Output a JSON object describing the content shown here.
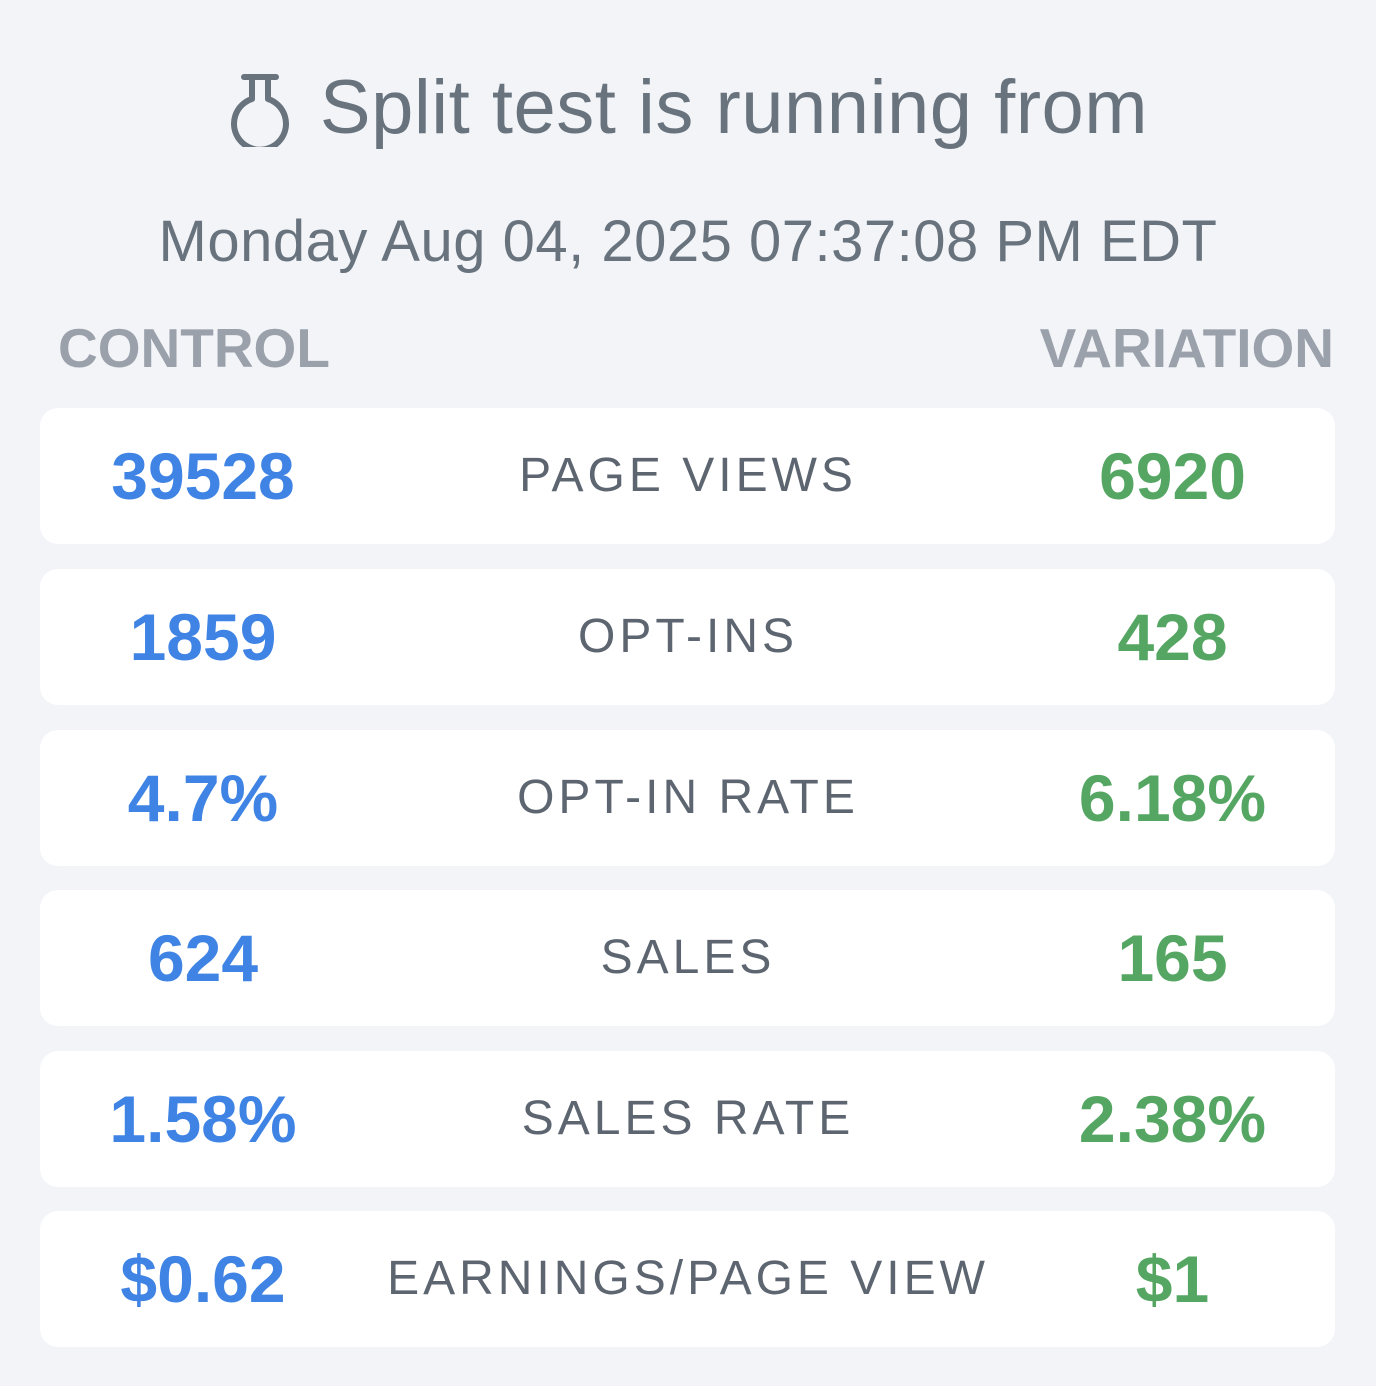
{
  "header": {
    "icon": "flask-icon",
    "title": "Split test is running from",
    "date": "Monday Aug 04, 2025 07:37:08 PM EDT"
  },
  "columns": {
    "control": "CONTROL",
    "variation": "VARIATION"
  },
  "colors": {
    "control": "#3f84e5",
    "variation": "#55a663",
    "label": "#5d6670",
    "heading": "#9aa1ab",
    "background": "#f2f4f8"
  },
  "rows": [
    {
      "control": "39528",
      "label": "PAGE VIEWS",
      "variation": "6920"
    },
    {
      "control": "1859",
      "label": "OPT-INS",
      "variation": "428"
    },
    {
      "control": "4.7%",
      "label": "OPT-IN RATE",
      "variation": "6.18%"
    },
    {
      "control": "624",
      "label": "SALES",
      "variation": "165"
    },
    {
      "control": "1.58%",
      "label": "SALES RATE",
      "variation": "2.38%"
    },
    {
      "control": "$0.62",
      "label": "EARNINGS/PAGE VIEW",
      "variation": "$1"
    }
  ]
}
